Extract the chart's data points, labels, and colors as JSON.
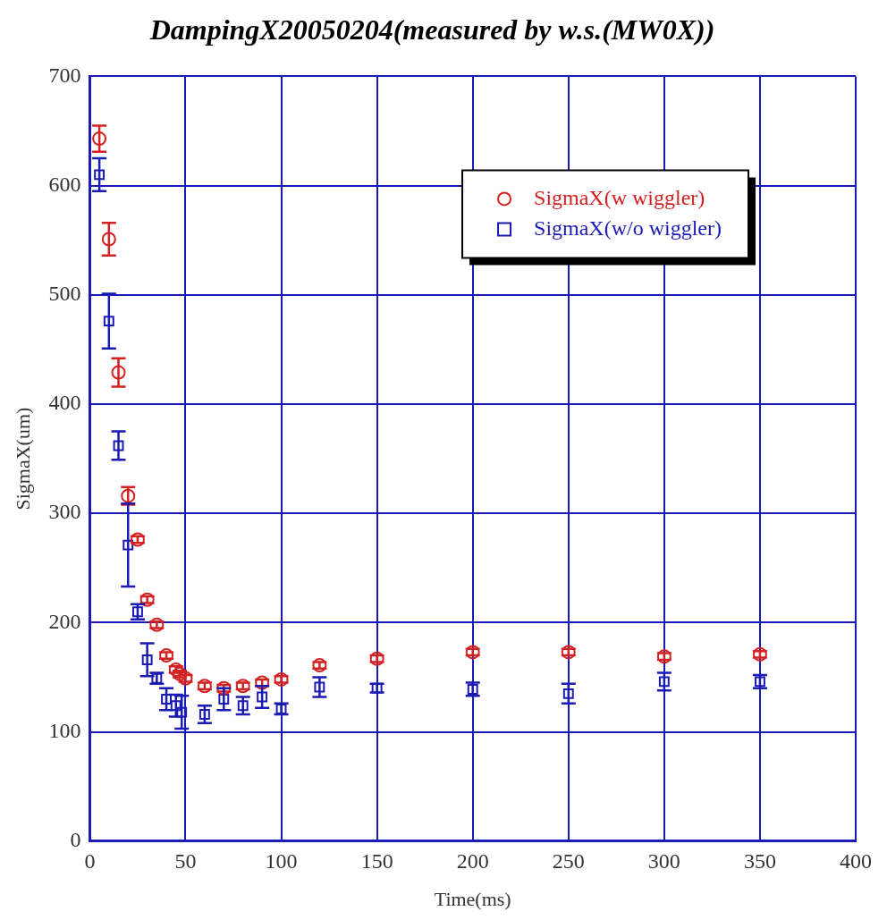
{
  "chart_data": {
    "type": "scatter",
    "title": "DampingX20050204(measured by w.s.(MW0X))",
    "xlabel": "Time(ms)",
    "ylabel": "SigmaX(um)",
    "xlim": [
      0,
      400
    ],
    "xticks": [
      0,
      50,
      100,
      150,
      200,
      250,
      300,
      350,
      400
    ],
    "ylim": [
      0,
      700
    ],
    "yticks": [
      0,
      100,
      200,
      300,
      400,
      500,
      600,
      700
    ],
    "grid": true,
    "legend": "top right",
    "series": [
      {
        "name": "SigmaX(w wiggler)",
        "color": "#d42020",
        "marker": "circle",
        "x": [
          5,
          10,
          15,
          20,
          25,
          30,
          35,
          40,
          45,
          47,
          50,
          60,
          70,
          80,
          90,
          100,
          120,
          150,
          200,
          250,
          300,
          350
        ],
        "values": [
          643,
          551,
          429,
          316,
          276,
          221,
          198,
          170,
          157,
          153,
          149,
          142,
          140,
          142,
          145,
          148,
          161,
          167,
          173,
          173,
          169,
          171
        ],
        "errors": [
          12,
          15,
          13,
          8,
          3,
          3,
          3,
          3,
          3,
          3,
          3,
          3,
          3,
          3,
          3,
          3,
          3,
          3,
          3,
          3,
          3,
          3
        ]
      },
      {
        "name": "SigmaX(w/o wiggler)",
        "color": "#1a1ab4",
        "marker": "square",
        "x": [
          5,
          10,
          15,
          20,
          25,
          30,
          35,
          40,
          45,
          48,
          60,
          70,
          80,
          90,
          100,
          120,
          150,
          200,
          250,
          300,
          350
        ],
        "values": [
          610,
          476,
          362,
          271,
          210,
          166,
          149,
          130,
          124,
          118,
          116,
          130,
          124,
          132,
          121,
          141,
          140,
          139,
          135,
          146,
          146
        ],
        "errors": [
          15,
          25,
          13,
          38,
          7,
          15,
          5,
          10,
          10,
          15,
          8,
          10,
          8,
          10,
          5,
          9,
          4,
          6,
          9,
          8,
          6
        ]
      }
    ]
  }
}
